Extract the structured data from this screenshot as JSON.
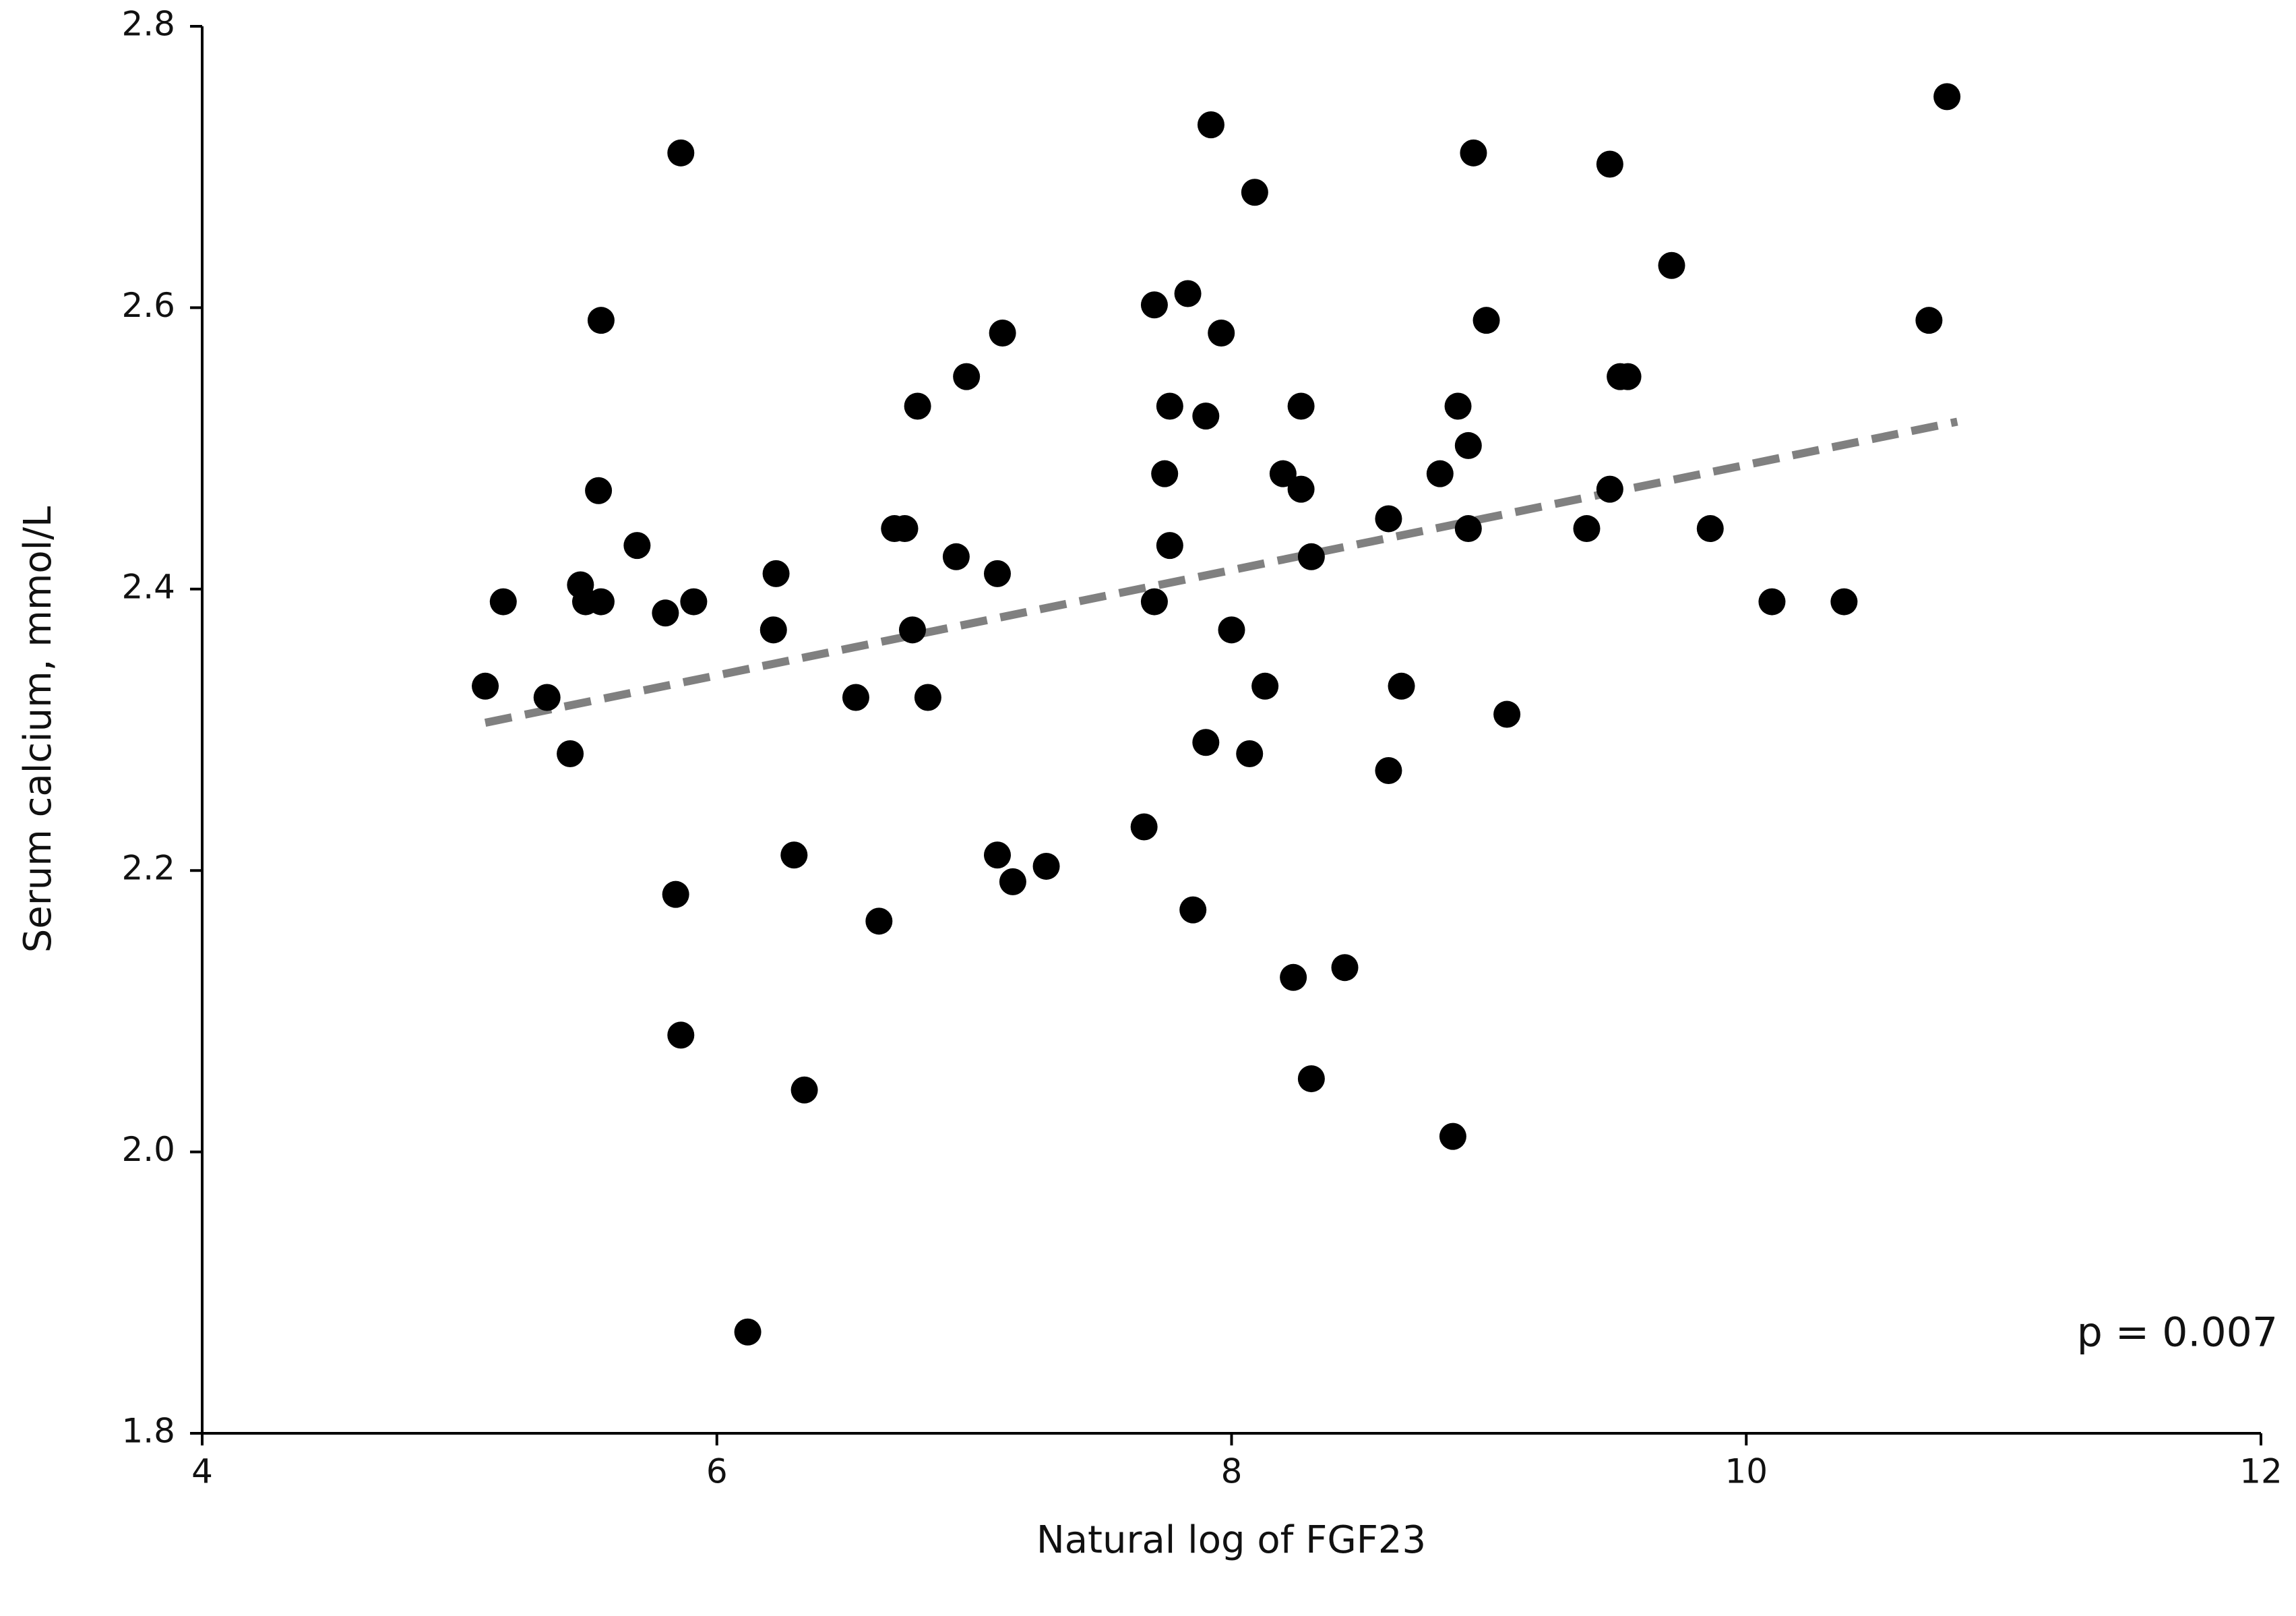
{
  "chart_data": {
    "type": "scatter",
    "xlabel": "Natural log of FGF23",
    "ylabel": "Serum calcium,  mmol/L",
    "annotation": "p = 0.007",
    "xlim": [
      4,
      12
    ],
    "xticks": [
      4,
      6,
      8,
      10,
      12
    ],
    "ylim": [
      1.8,
      2.8
    ],
    "yticks": [
      1.8,
      {
        "value": 2,
        "label": "2.0"
      },
      2.2,
      2.4,
      2.6,
      2.8
    ],
    "grid": false,
    "series": [
      {
        "color": "#000000",
        "x": [
          5.1,
          5.17,
          5.34,
          5.43,
          5.47,
          5.49,
          5.54,
          5.55,
          5.55,
          5.69,
          5.8,
          5.86,
          5.84,
          5.86,
          5.91,
          6.12,
          6.22,
          6.23,
          6.3,
          6.34,
          6.54,
          6.63,
          6.69,
          6.73,
          6.76,
          6.78,
          6.82,
          6.93,
          6.97,
          7.09,
          7.09,
          7.11,
          7.15,
          7.28,
          7.66,
          7.7,
          7.7,
          7.74,
          7.76,
          7.76,
          7.83,
          7.85,
          7.9,
          7.9,
          7.92,
          7.96,
          8.0,
          8.07,
          8.09,
          8.13,
          8.2,
          8.24,
          8.27,
          8.27,
          8.31,
          8.31,
          8.44,
          8.61,
          8.61,
          8.66,
          8.81,
          8.86,
          8.88,
          8.92,
          8.92,
          8.94,
          8.99,
          9.07,
          9.38,
          9.47,
          9.47,
          9.51,
          9.54,
          9.71,
          9.86,
          10.1,
          10.38,
          10.71,
          10.78
        ],
        "y": [
          2.331,
          2.391,
          2.323,
          2.283,
          2.403,
          2.391,
          2.47,
          2.591,
          2.391,
          2.431,
          2.383,
          2.71,
          2.183,
          2.083,
          2.391,
          1.872,
          2.371,
          2.411,
          2.211,
          2.044,
          2.323,
          2.164,
          2.443,
          2.443,
          2.371,
          2.53,
          2.323,
          2.423,
          2.551,
          2.411,
          2.211,
          2.582,
          2.192,
          2.203,
          2.231,
          2.602,
          2.391,
          2.482,
          2.53,
          2.431,
          2.61,
          2.172,
          2.523,
          2.291,
          2.73,
          2.582,
          2.371,
          2.283,
          2.682,
          2.331,
          2.482,
          2.124,
          2.53,
          2.471,
          2.423,
          2.052,
          2.131,
          2.45,
          2.271,
          2.331,
          2.482,
          2.011,
          2.53,
          2.502,
          2.443,
          2.71,
          2.591,
          2.311,
          2.443,
          2.471,
          2.702,
          2.551,
          2.551,
          2.63,
          2.443,
          2.391,
          2.391,
          2.591,
          2.75
        ]
      }
    ],
    "trendline": {
      "color": "#808080",
      "x": [
        5.1,
        10.82
      ],
      "y": [
        2.305,
        2.519
      ]
    }
  }
}
